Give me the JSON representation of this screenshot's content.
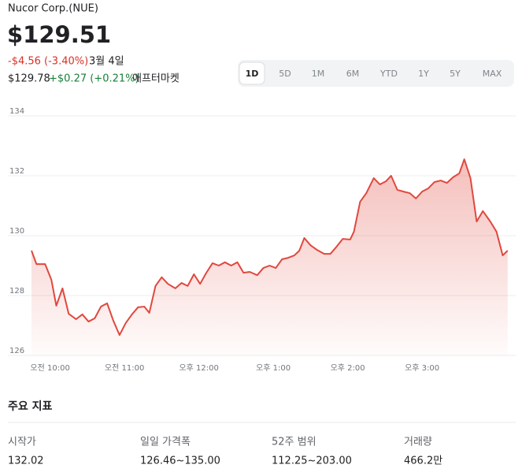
{
  "header": {
    "title": "Nucor Corp.(NUE)",
    "price": "$129.51",
    "change": "-$4.56 (-3.40%)",
    "date": "3월 4일",
    "after_price": "$129.78",
    "after_change": "+$0.27 (+0.21%)",
    "after_label": "애프터마켓"
  },
  "tabs": {
    "items": [
      "1D",
      "5D",
      "1M",
      "6M",
      "YTD",
      "1Y",
      "5Y",
      "MAX"
    ],
    "selected": 0
  },
  "chart_data": {
    "type": "line",
    "color": "#e0483e",
    "x": [
      585,
      589,
      596,
      601,
      605,
      610,
      615,
      621,
      626,
      631,
      636,
      641,
      646,
      651,
      656,
      661,
      666,
      671,
      676,
      680,
      685,
      690,
      695,
      701,
      706,
      711,
      716,
      721,
      726,
      731,
      736,
      741,
      746,
      751,
      756,
      761,
      767,
      772,
      777,
      782,
      787,
      792,
      797,
      801,
      805,
      810,
      815,
      821,
      826,
      831,
      836,
      842,
      845,
      850,
      855,
      861,
      866,
      871,
      875,
      880,
      885,
      890,
      895,
      900,
      905,
      910,
      915,
      920,
      925,
      930,
      934,
      939,
      944,
      949,
      955,
      960,
      965,
      969
    ],
    "values": [
      129.5,
      129.05,
      129.05,
      128.53,
      127.66,
      128.24,
      127.39,
      127.21,
      127.37,
      127.13,
      127.24,
      127.63,
      127.74,
      127.16,
      126.68,
      127.08,
      127.37,
      127.61,
      127.63,
      127.42,
      128.32,
      128.61,
      128.39,
      128.24,
      128.42,
      128.32,
      128.71,
      128.39,
      128.76,
      129.08,
      129.0,
      129.11,
      129.0,
      129.11,
      128.76,
      128.79,
      128.68,
      128.92,
      129.0,
      128.92,
      129.21,
      129.26,
      129.34,
      129.5,
      129.92,
      129.68,
      129.53,
      129.39,
      129.39,
      129.63,
      129.89,
      129.87,
      130.13,
      131.13,
      131.42,
      131.92,
      131.71,
      131.82,
      132.0,
      131.53,
      131.47,
      131.42,
      131.24,
      131.47,
      131.58,
      131.79,
      131.84,
      131.76,
      131.95,
      132.08,
      132.55,
      131.92,
      130.47,
      130.82,
      130.47,
      130.13,
      129.34,
      129.5
    ],
    "xlim": [
      585,
      975
    ],
    "xticks": [
      {
        "value": 600,
        "label": "오전 10:00"
      },
      {
        "value": 660,
        "label": "오전 11:00"
      },
      {
        "value": 720,
        "label": "오후 12:00"
      },
      {
        "value": 780,
        "label": "오후 1:00"
      },
      {
        "value": 840,
        "label": "오후 2:00"
      },
      {
        "value": 900,
        "label": "오후 3:00"
      }
    ],
    "ylim": [
      126,
      134
    ],
    "yticks": [
      126,
      128,
      130,
      132,
      134
    ],
    "grid": true
  },
  "key_stats": {
    "title": "주요 지표",
    "items": [
      {
        "label": "시작가",
        "value": "132.02"
      },
      {
        "label": "일일 가격폭",
        "value": "126.46~135.00"
      },
      {
        "label": "52주 범위",
        "value": "112.25~203.00"
      },
      {
        "label": "거래량",
        "value": "466.2만"
      }
    ]
  }
}
